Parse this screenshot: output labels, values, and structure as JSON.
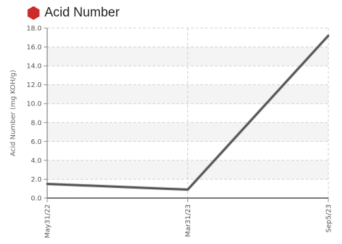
{
  "header": {
    "title": "Acid Number",
    "icon": "red-hexagon-icon",
    "icon_color": "#cc2b2b"
  },
  "chart_data": {
    "type": "line",
    "title": "Acid Number",
    "xlabel": "",
    "ylabel": "Acid Number (mg KOH/g)",
    "categories": [
      "May31/22",
      "Mar31/23",
      "Sep5/23"
    ],
    "series": [
      {
        "values": [
          1.5,
          0.9,
          17.2
        ]
      }
    ],
    "ylim": [
      0,
      18
    ],
    "yticks": [
      "0.0",
      "2.0",
      "4.0",
      "6.0",
      "8.0",
      "10.0",
      "12.0",
      "14.0",
      "16.0",
      "18.0"
    ],
    "grid": true,
    "banded_background": true,
    "line_color": "#555555"
  }
}
